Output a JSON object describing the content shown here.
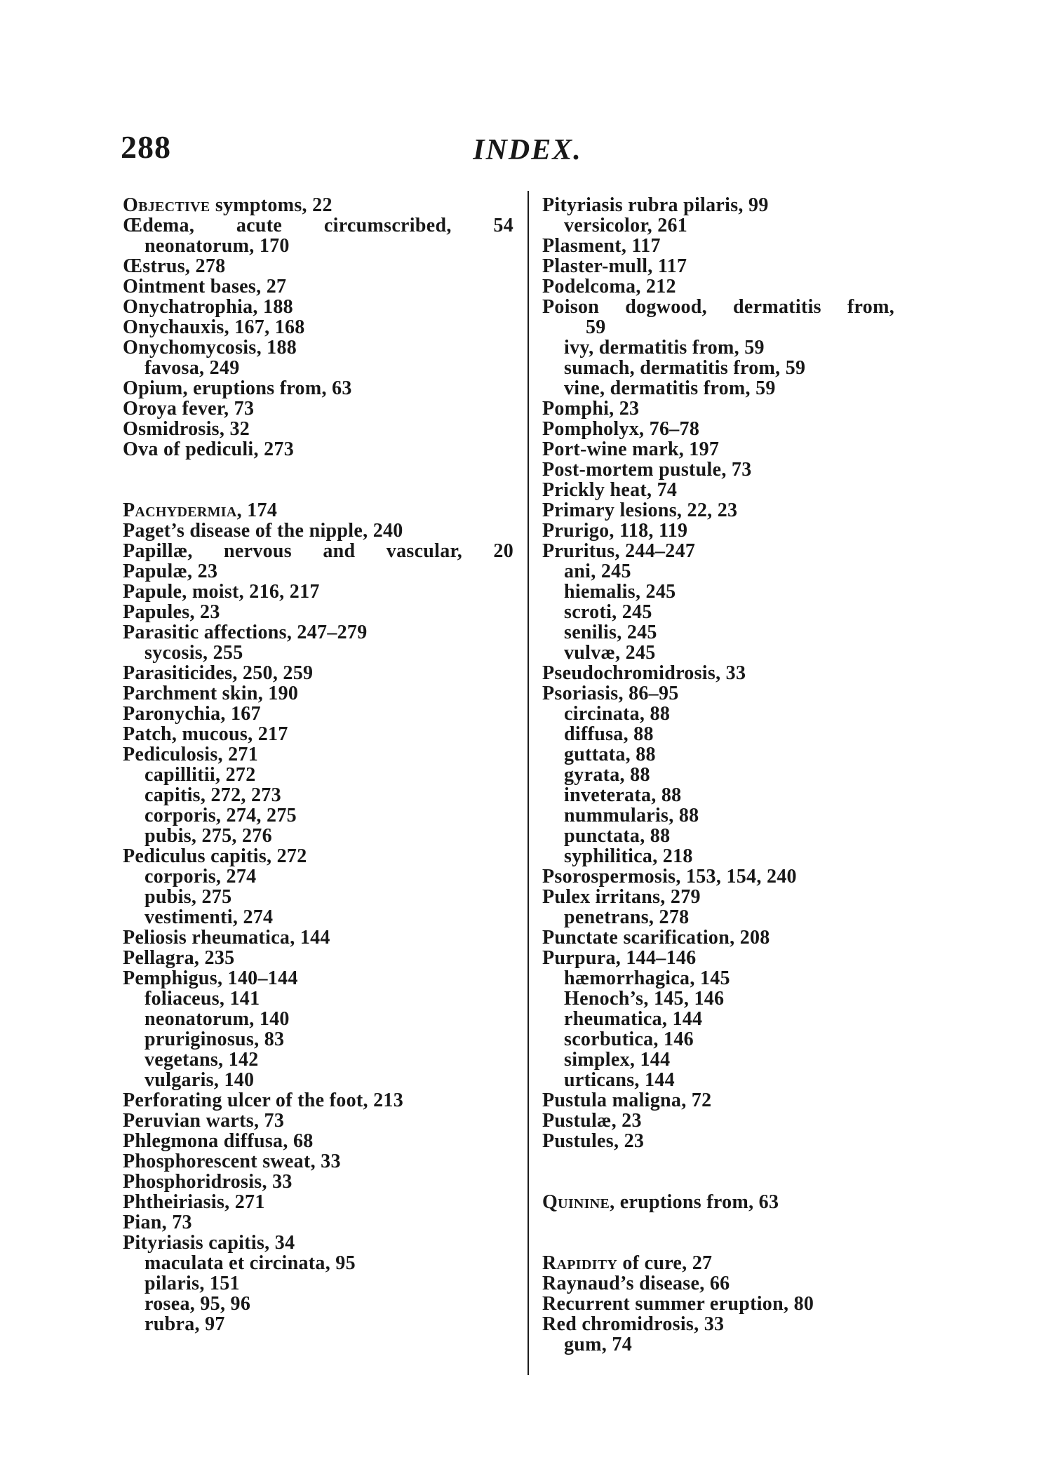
{
  "header": {
    "page_number": "288",
    "title": "INDEX."
  },
  "ink_color": "#181818",
  "columns": {
    "left": [
      {
        "t": "Objective symptoms, 22",
        "ind": 0,
        "sc": true
      },
      {
        "t": "Œdema, acute circumscribed, 54",
        "ind": 0,
        "st": true
      },
      {
        "t": "neonatorum, 170",
        "ind": 1
      },
      {
        "t": "Œstrus, 278",
        "ind": 0
      },
      {
        "t": "Ointment bases, 27",
        "ind": 0
      },
      {
        "t": "Onychatrophia, 188",
        "ind": 0
      },
      {
        "t": "Onychauxis, 167, 168",
        "ind": 0
      },
      {
        "t": "Onychomycosis, 188",
        "ind": 0
      },
      {
        "t": "favosa, 249",
        "ind": 1
      },
      {
        "t": "Opium, eruptions from, 63",
        "ind": 0
      },
      {
        "t": "Oroya fever, 73",
        "ind": 0
      },
      {
        "t": "Osmidrosis, 32",
        "ind": 0
      },
      {
        "t": "Ova of pediculi, 273",
        "ind": 0
      },
      {
        "t": "",
        "ind": 0
      },
      {
        "t": "",
        "ind": 0
      },
      {
        "t": "Pachydermia, 174",
        "ind": 0,
        "sc": true
      },
      {
        "t": "Paget’s disease of the nipple, 240",
        "ind": 0
      },
      {
        "t": "Papillæ, nervous and vascular, 20",
        "ind": 0,
        "st": true
      },
      {
        "t": "Papulæ, 23",
        "ind": 0
      },
      {
        "t": "Papule, moist, 216, 217",
        "ind": 0
      },
      {
        "t": "Papules, 23",
        "ind": 0
      },
      {
        "t": "Parasitic affections, 247–279",
        "ind": 0
      },
      {
        "t": "sycosis, 255",
        "ind": 1
      },
      {
        "t": "Parasiticides, 250, 259",
        "ind": 0
      },
      {
        "t": "Parchment skin, 190",
        "ind": 0
      },
      {
        "t": "Paronychia, 167",
        "ind": 0
      },
      {
        "t": "Patch, mucous, 217",
        "ind": 0
      },
      {
        "t": "Pediculosis, 271",
        "ind": 0
      },
      {
        "t": "capillitii, 272",
        "ind": 1
      },
      {
        "t": "capitis, 272, 273",
        "ind": 1
      },
      {
        "t": "corporis, 274, 275",
        "ind": 1
      },
      {
        "t": "pubis, 275, 276",
        "ind": 1
      },
      {
        "t": "Pediculus capitis, 272",
        "ind": 0
      },
      {
        "t": "corporis, 274",
        "ind": 1
      },
      {
        "t": "pubis, 275",
        "ind": 1
      },
      {
        "t": "vestimenti, 274",
        "ind": 1
      },
      {
        "t": "Peliosis rheumatica, 144",
        "ind": 0
      },
      {
        "t": "Pellagra, 235",
        "ind": 0
      },
      {
        "t": "Pemphigus, 140–144",
        "ind": 0
      },
      {
        "t": "foliaceus, 141",
        "ind": 1
      },
      {
        "t": "neonatorum, 140",
        "ind": 1
      },
      {
        "t": "pruriginosus, 83",
        "ind": 1
      },
      {
        "t": "vegetans, 142",
        "ind": 1
      },
      {
        "t": "vulgaris, 140",
        "ind": 1
      },
      {
        "t": "Perforating ulcer of the foot, 213",
        "ind": 0
      },
      {
        "t": "Peruvian warts, 73",
        "ind": 0
      },
      {
        "t": "Phlegmona diffusa, 68",
        "ind": 0
      },
      {
        "t": "Phosphorescent sweat, 33",
        "ind": 0
      },
      {
        "t": "Phosphoridrosis, 33",
        "ind": 0
      },
      {
        "t": "Phtheiriasis, 271",
        "ind": 0
      },
      {
        "t": "Pian, 73",
        "ind": 0
      },
      {
        "t": "Pityriasis capitis, 34",
        "ind": 0
      },
      {
        "t": "maculata et circinata, 95",
        "ind": 1
      },
      {
        "t": "pilaris, 151",
        "ind": 1
      },
      {
        "t": "rosea, 95, 96",
        "ind": 1
      },
      {
        "t": "rubra, 97",
        "ind": 1
      }
    ],
    "right": [
      {
        "t": "Pityriasis rubra pilaris, 99",
        "ind": 0
      },
      {
        "t": "versicolor, 261",
        "ind": 1
      },
      {
        "t": "Plasment, 117",
        "ind": 0
      },
      {
        "t": "Plaster-mull, 117",
        "ind": 0
      },
      {
        "t": "Podelcoma, 212",
        "ind": 0
      },
      {
        "t": "Poison dogwood, dermatitis from,",
        "ind": 0,
        "st": true
      },
      {
        "t": "59",
        "ind": 2
      },
      {
        "t": "ivy, dermatitis from, 59",
        "ind": 1
      },
      {
        "t": "sumach, dermatitis from, 59",
        "ind": 1
      },
      {
        "t": "vine, dermatitis from, 59",
        "ind": 1
      },
      {
        "t": "Pomphi, 23",
        "ind": 0
      },
      {
        "t": "Pompholyx, 76–78",
        "ind": 0
      },
      {
        "t": "Port-wine mark, 197",
        "ind": 0
      },
      {
        "t": "Post-mortem pustule, 73",
        "ind": 0
      },
      {
        "t": "Prickly heat, 74",
        "ind": 0
      },
      {
        "t": "Primary lesions, 22, 23",
        "ind": 0
      },
      {
        "t": "Prurigo, 118, 119",
        "ind": 0
      },
      {
        "t": "Pruritus, 244–247",
        "ind": 0
      },
      {
        "t": "ani, 245",
        "ind": 1
      },
      {
        "t": "hiemalis, 245",
        "ind": 1
      },
      {
        "t": "scroti, 245",
        "ind": 1
      },
      {
        "t": "senilis, 245",
        "ind": 1
      },
      {
        "t": "vulvæ, 245",
        "ind": 1
      },
      {
        "t": "Pseudochromidrosis, 33",
        "ind": 0
      },
      {
        "t": "Psoriasis, 86–95",
        "ind": 0
      },
      {
        "t": "circinata, 88",
        "ind": 1
      },
      {
        "t": "diffusa, 88",
        "ind": 1
      },
      {
        "t": "guttata, 88",
        "ind": 1
      },
      {
        "t": "gyrata, 88",
        "ind": 1
      },
      {
        "t": "inveterata, 88",
        "ind": 1
      },
      {
        "t": "nummularis, 88",
        "ind": 1
      },
      {
        "t": "punctata, 88",
        "ind": 1
      },
      {
        "t": "syphilitica, 218",
        "ind": 1
      },
      {
        "t": "Psorospermosis, 153, 154, 240",
        "ind": 0
      },
      {
        "t": "Pulex irritans, 279",
        "ind": 0
      },
      {
        "t": "penetrans, 278",
        "ind": 1
      },
      {
        "t": "Punctate scarification, 208",
        "ind": 0
      },
      {
        "t": "Purpura, 144–146",
        "ind": 0
      },
      {
        "t": "hæmorrhagica, 145",
        "ind": 1
      },
      {
        "t": "Henoch’s, 145, 146",
        "ind": 1
      },
      {
        "t": "rheumatica, 144",
        "ind": 1
      },
      {
        "t": "scorbutica, 146",
        "ind": 1
      },
      {
        "t": "simplex, 144",
        "ind": 1
      },
      {
        "t": "urticans, 144",
        "ind": 1
      },
      {
        "t": "Pustula maligna, 72",
        "ind": 0
      },
      {
        "t": "Pustulæ, 23",
        "ind": 0
      },
      {
        "t": "Pustules, 23",
        "ind": 0
      },
      {
        "t": "",
        "ind": 0
      },
      {
        "t": "",
        "ind": 0
      },
      {
        "t": "Quinine, eruptions from, 63",
        "ind": 0,
        "sc": true
      },
      {
        "t": "",
        "ind": 0
      },
      {
        "t": "",
        "ind": 0
      },
      {
        "t": "Rapidity of cure, 27",
        "ind": 0,
        "sc": true
      },
      {
        "t": "Raynaud’s disease, 66",
        "ind": 0
      },
      {
        "t": "Recurrent summer eruption, 80",
        "ind": 0
      },
      {
        "t": "Red chromidrosis, 33",
        "ind": 0
      },
      {
        "t": "gum, 74",
        "ind": 1
      }
    ]
  }
}
